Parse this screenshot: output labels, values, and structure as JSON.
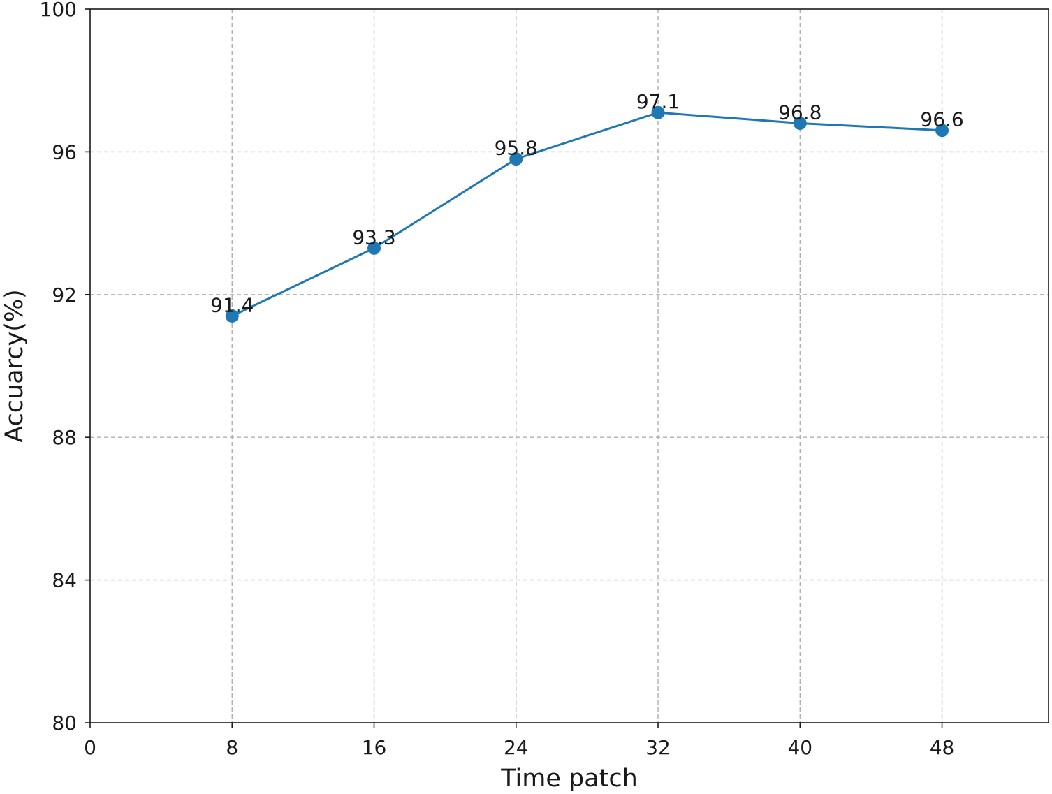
{
  "chart_data": {
    "type": "line",
    "title": "",
    "xlabel": "Time patch",
    "ylabel": "Accuarcy(%)",
    "x": [
      8,
      16,
      24,
      32,
      40,
      48
    ],
    "series": [
      {
        "values": [
          91.4,
          93.3,
          95.8,
          97.1,
          96.8,
          96.6
        ],
        "data_labels": [
          "91.4",
          "93.3",
          "95.8",
          "97.1",
          "96.8",
          "96.6"
        ],
        "color": "#1f77b4",
        "marker": "circle"
      }
    ],
    "xlim": [
      0,
      54
    ],
    "ylim": [
      80,
      100
    ],
    "xticks": [
      0,
      8,
      16,
      24,
      32,
      40,
      48
    ],
    "xtick_labels": [
      "0",
      "8",
      "16",
      "24",
      "32",
      "40",
      "48"
    ],
    "yticks": [
      80,
      84,
      88,
      92,
      96,
      100
    ],
    "ytick_labels": [
      "80",
      "84",
      "88",
      "92",
      "96",
      "100"
    ],
    "grid": true,
    "legend": "none"
  }
}
